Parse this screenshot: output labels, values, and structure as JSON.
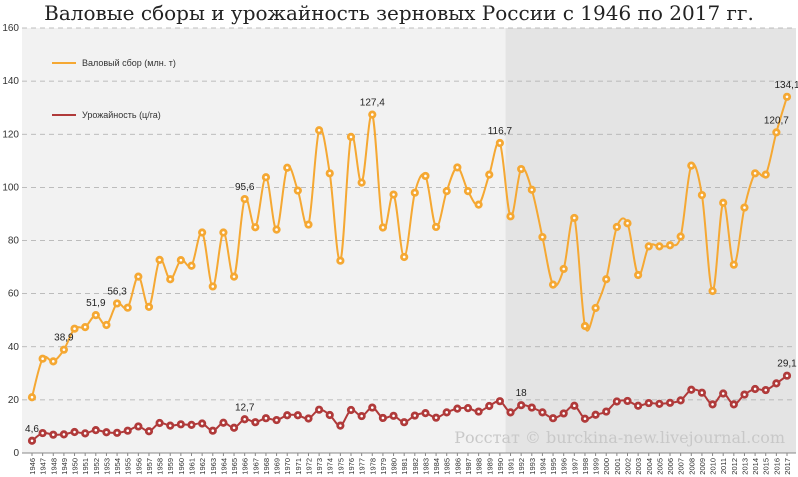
{
  "chart_data": {
    "type": "line",
    "title": "Валовые сборы и урожайность зерновых России с 1946 по 2017 гг.",
    "xlabel": "",
    "ylabel": "",
    "ylim": [
      0,
      160
    ],
    "yticks": [
      0,
      20,
      40,
      60,
      80,
      100,
      120,
      140,
      160
    ],
    "grid": true,
    "legend_position": "top-left",
    "shaded_from": 1991,
    "watermark": "Росстат © burckina-new.livejournal.com",
    "x": [
      1946,
      1947,
      1948,
      1949,
      1950,
      1951,
      1952,
      1953,
      1954,
      1955,
      1956,
      1957,
      1958,
      1959,
      1960,
      1961,
      1962,
      1963,
      1964,
      1965,
      1966,
      1967,
      1968,
      1969,
      1970,
      1971,
      1972,
      1973,
      1974,
      1975,
      1976,
      1977,
      1978,
      1979,
      1980,
      1981,
      1982,
      1983,
      1984,
      1985,
      1986,
      1987,
      1988,
      1989,
      1990,
      1991,
      1992,
      1993,
      1994,
      1995,
      1996,
      1997,
      1998,
      1999,
      2000,
      2001,
      2002,
      2003,
      2004,
      2005,
      2006,
      2007,
      2008,
      2009,
      2010,
      2011,
      2012,
      2013,
      2014,
      2015,
      2016,
      2017
    ],
    "series": [
      {
        "name": "Валовый сбор (млн. т)",
        "color": "#f5a833",
        "values": [
          21.0,
          35.5,
          34.5,
          38.9,
          46.8,
          47.4,
          51.9,
          48.2,
          56.3,
          54.7,
          66.4,
          55.0,
          72.7,
          65.4,
          72.6,
          70.5,
          83.0,
          62.7,
          83.0,
          66.4,
          95.6,
          85.0,
          103.8,
          84.1,
          107.4,
          98.8,
          86.0,
          121.5,
          105.3,
          72.4,
          119.0,
          101.8,
          127.4,
          84.9,
          97.3,
          73.8,
          98.0,
          104.3,
          85.1,
          98.6,
          107.5,
          98.6,
          93.5,
          104.8,
          116.7,
          89.1,
          106.9,
          99.1,
          81.3,
          63.4,
          69.3,
          88.5,
          47.8,
          54.6,
          65.4,
          85.1,
          86.5,
          67.0,
          77.8,
          77.8,
          78.2,
          81.5,
          108.2,
          97.1,
          61.0,
          94.2,
          70.9,
          92.4,
          105.3,
          104.8,
          120.7,
          134.1
        ],
        "labels": {
          "1949": "38,9",
          "1952": "51,9",
          "1954": "56,3",
          "1966": "95,6",
          "1978": "127,4",
          "1990": "116,7",
          "2016": "120,7",
          "2017": "134,1"
        }
      },
      {
        "name": "Урожайность (ц/га)",
        "color": "#b03a3a",
        "values": [
          4.6,
          7.5,
          6.9,
          7.0,
          7.9,
          7.4,
          8.6,
          7.8,
          7.6,
          8.4,
          10.0,
          8.2,
          11.3,
          10.3,
          10.8,
          10.6,
          11.1,
          8.4,
          11.4,
          9.5,
          12.7,
          11.6,
          13.1,
          12.4,
          14.2,
          14.2,
          13.0,
          16.3,
          14.3,
          10.3,
          16.2,
          13.9,
          17.1,
          13.2,
          14.0,
          11.6,
          14.1,
          15.0,
          13.3,
          15.3,
          16.7,
          16.9,
          15.6,
          17.7,
          19.5,
          15.3,
          18.0,
          17.1,
          15.3,
          13.1,
          14.9,
          17.8,
          12.9,
          14.4,
          15.6,
          19.4,
          19.6,
          17.8,
          18.8,
          18.5,
          18.9,
          19.8,
          23.8,
          22.7,
          18.3,
          22.4,
          18.3,
          22.0,
          24.1,
          23.7,
          26.2,
          29.1
        ],
        "labels": {
          "1946": "4,6",
          "1966": "12,7",
          "1992": "18",
          "2017": "29,1"
        }
      }
    ]
  }
}
